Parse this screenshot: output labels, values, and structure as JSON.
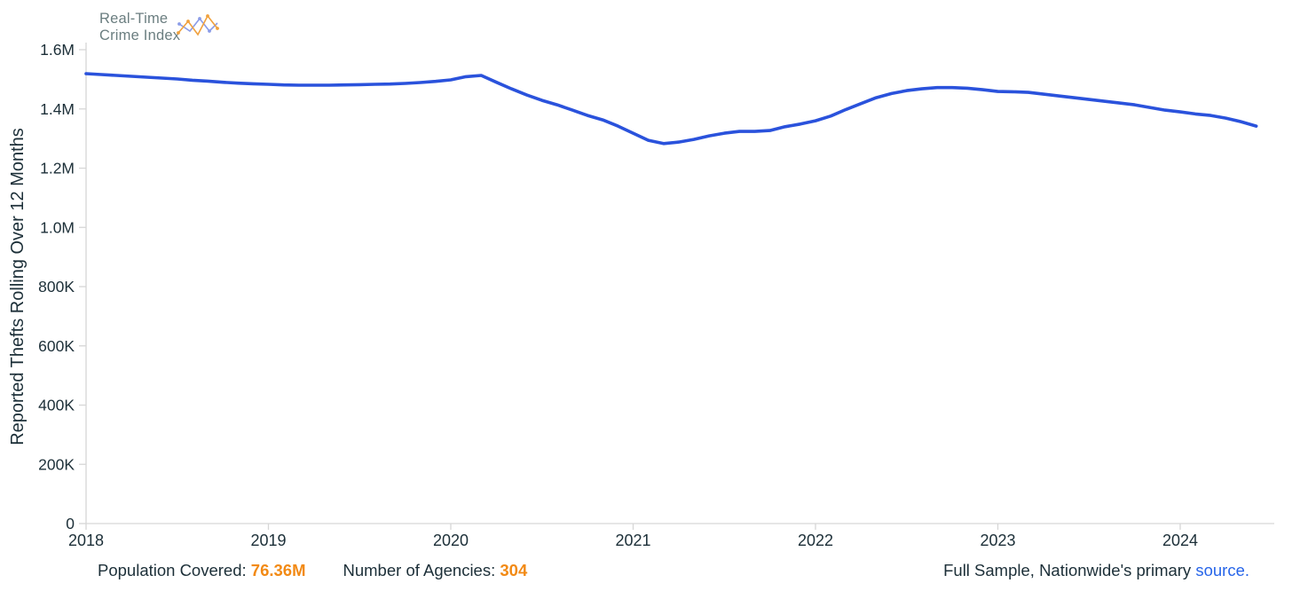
{
  "logo": {
    "line1": "Real-Time",
    "line2": "Crime Index",
    "icon": "zigzag-sparkline-icon"
  },
  "chart_data": {
    "type": "line",
    "title": "",
    "xlabel": "",
    "ylabel": "Reported Thefts Rolling Over 12 Months",
    "legend": "none",
    "grid": false,
    "ylim": [
      0,
      1600000
    ],
    "xlim": [
      2018,
      2024.55
    ],
    "x_tick_values": [
      2018,
      2019,
      2020,
      2021,
      2022,
      2023,
      2024
    ],
    "x_tick_labels": [
      "2018",
      "2019",
      "2020",
      "2021",
      "2022",
      "2023",
      "2024"
    ],
    "y_tick_values": [
      0,
      200000,
      400000,
      600000,
      800000,
      1000000,
      1200000,
      1400000,
      1600000
    ],
    "y_tick_labels": [
      "0",
      "200K",
      "400K",
      "600K",
      "800K",
      "1.0M",
      "1.2M",
      "1.4M",
      "1.6M"
    ],
    "series": [
      {
        "name": "Reported Thefts Rolling Over 12 Months",
        "color": "#2a52dc",
        "x": [
          2018.0,
          2018.083,
          2018.167,
          2018.25,
          2018.333,
          2018.417,
          2018.5,
          2018.583,
          2018.667,
          2018.75,
          2018.833,
          2018.917,
          2019.0,
          2019.083,
          2019.167,
          2019.25,
          2019.333,
          2019.417,
          2019.5,
          2019.583,
          2019.667,
          2019.75,
          2019.833,
          2019.917,
          2020.0,
          2020.083,
          2020.167,
          2020.25,
          2020.333,
          2020.417,
          2020.5,
          2020.583,
          2020.667,
          2020.75,
          2020.833,
          2020.917,
          2021.0,
          2021.083,
          2021.167,
          2021.25,
          2021.333,
          2021.417,
          2021.5,
          2021.583,
          2021.667,
          2021.75,
          2021.833,
          2021.917,
          2022.0,
          2022.083,
          2022.167,
          2022.25,
          2022.333,
          2022.417,
          2022.5,
          2022.583,
          2022.667,
          2022.75,
          2022.833,
          2022.917,
          2023.0,
          2023.083,
          2023.167,
          2023.25,
          2023.333,
          2023.417,
          2023.5,
          2023.583,
          2023.667,
          2023.75,
          2023.833,
          2023.917,
          2024.0,
          2024.083,
          2024.167,
          2024.25,
          2024.333,
          2024.417
        ],
        "values": [
          1519000,
          1516000,
          1513000,
          1510000,
          1507000,
          1504000,
          1501000,
          1497000,
          1494000,
          1490000,
          1487000,
          1485000,
          1483000,
          1481000,
          1480000,
          1480000,
          1480000,
          1481000,
          1482000,
          1483000,
          1484000,
          1486000,
          1489000,
          1493000,
          1498000,
          1509000,
          1513000,
          1490000,
          1468000,
          1447000,
          1429000,
          1414000,
          1396000,
          1378000,
          1363000,
          1342000,
          1318000,
          1294000,
          1283000,
          1288000,
          1297000,
          1309000,
          1318000,
          1324000,
          1324000,
          1327000,
          1340000,
          1349000,
          1360000,
          1376000,
          1398000,
          1418000,
          1438000,
          1452000,
          1462000,
          1468000,
          1472000,
          1472000,
          1470000,
          1465000,
          1459000,
          1458000,
          1456000,
          1450000,
          1444000,
          1438000,
          1432000,
          1426000,
          1420000,
          1414000,
          1405000,
          1396000,
          1390000,
          1383000,
          1378000,
          1369000,
          1357000,
          1342000
        ]
      }
    ]
  },
  "footer": {
    "population_label": "Population Covered:",
    "population_value": "76.36M",
    "agencies_label": "Number of Agencies:",
    "agencies_value": "304",
    "note_text": "Full Sample, Nationwide's primary ",
    "note_link": "source."
  },
  "colors": {
    "line_blue": "#2a52dc",
    "accent_orange": "#f28a15",
    "link_blue": "#2765e9",
    "text_dark": "#1c2f38",
    "axis_gray": "#d6d6d6",
    "logo_gray": "#6b7e80",
    "logo_orange": "#f0a13e",
    "logo_periwinkle": "#8b9ce8"
  }
}
